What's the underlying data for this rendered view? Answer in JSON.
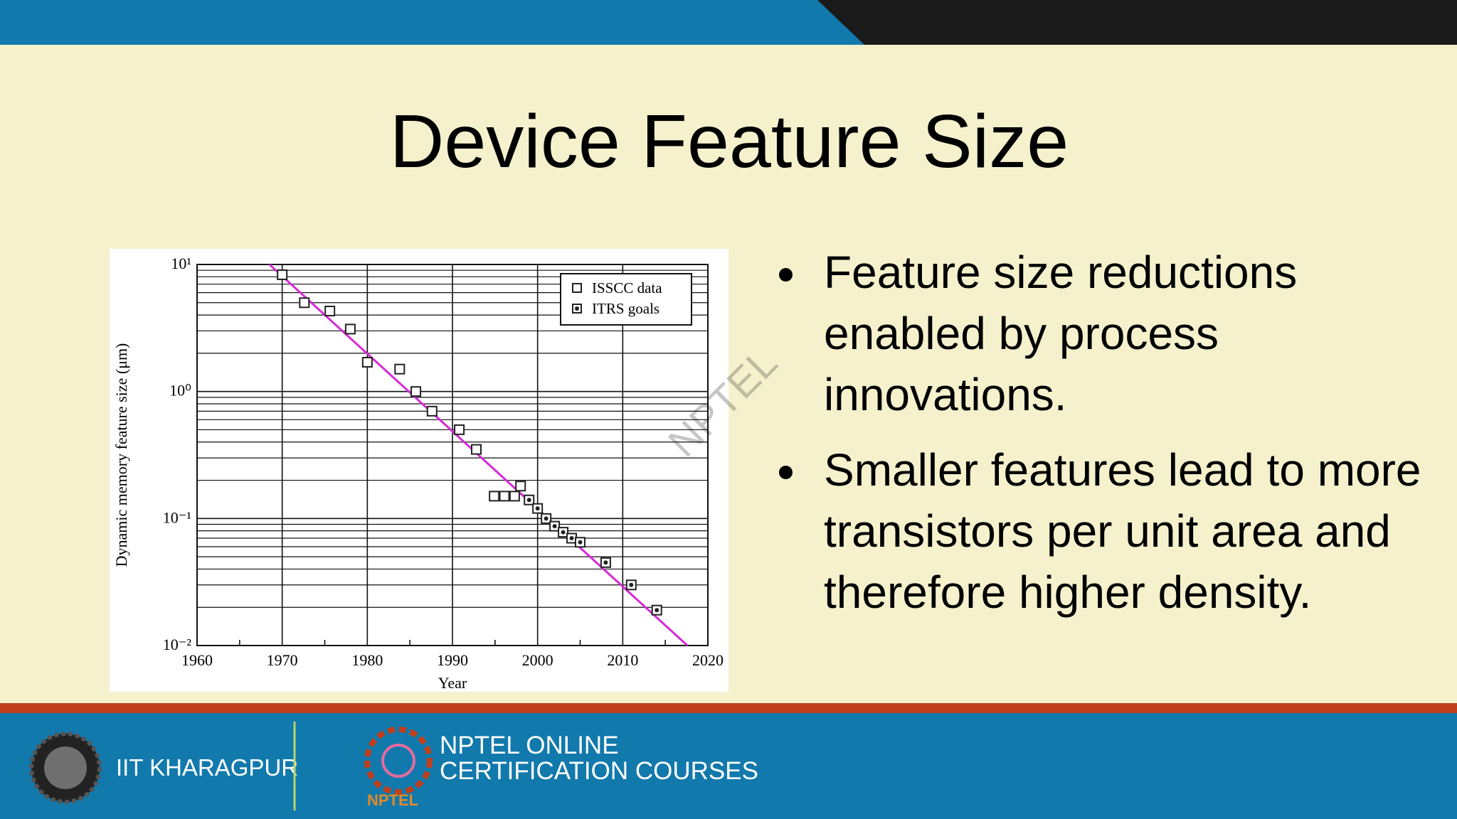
{
  "slide": {
    "title": "Device Feature Size",
    "bullets": [
      "Feature size reductions enabled by process innovations.",
      "Smaller features lead to more transistors per unit area and therefore higher density."
    ],
    "watermark": "NPTEL",
    "footer": {
      "institute": "IIT KHARAGPUR",
      "program_line1": "NPTEL ONLINE",
      "program_line2": "CERTIFICATION COURSES",
      "logo_text": "NPTEL"
    }
  },
  "chart_data": {
    "type": "scatter",
    "x_label": "Year",
    "y_label": "Dynamic memory feature size (μm)",
    "xlim": [
      1960,
      2020
    ],
    "xticks": [
      1960,
      1970,
      1980,
      1990,
      2000,
      2010,
      2020
    ],
    "xticks_minor": [
      1965,
      1975,
      1985,
      1995,
      2005,
      2015
    ],
    "ylim": [
      0.01,
      10
    ],
    "log_y": true,
    "yticks": [
      {
        "value": 10,
        "label": "10¹"
      },
      {
        "value": 1,
        "label": "10⁰"
      },
      {
        "value": 0.1,
        "label": "10⁻¹"
      },
      {
        "value": 0.01,
        "label": "10⁻²"
      }
    ],
    "yticks_minor": [
      0.02,
      0.03,
      0.04,
      0.05,
      0.06,
      0.07,
      0.08,
      0.09,
      0.2,
      0.3,
      0.4,
      0.5,
      0.6,
      0.7,
      0.8,
      0.9,
      2,
      3,
      4,
      5,
      6,
      7,
      8,
      9
    ],
    "grid": true,
    "legend": "upper right",
    "series": [
      {
        "name": "ISSCC data",
        "color": "#222222",
        "marker": "open-square",
        "x": [
          1970,
          1972.6,
          1975.6,
          1978,
          1980,
          1983.8,
          1985.7,
          1987.6,
          1990.8,
          1992.8,
          1994.9,
          1996.1,
          1997.3,
          1998
        ],
        "values": [
          8.3,
          5.0,
          4.3,
          3.1,
          1.7,
          1.5,
          1.0,
          0.7,
          0.5,
          0.35,
          0.15,
          0.15,
          0.15,
          0.18
        ]
      },
      {
        "name": "ITRS goals",
        "color": "#222222",
        "marker": "dot-square",
        "x": [
          1999,
          2000,
          2001,
          2002,
          2003,
          2004,
          2005,
          2008,
          2011,
          2014
        ],
        "values": [
          0.14,
          0.12,
          0.1,
          0.087,
          0.078,
          0.07,
          0.065,
          0.045,
          0.03,
          0.019
        ]
      }
    ],
    "trend_line": {
      "color": "#d62ad6",
      "x": [
        1968.5,
        2017.6
      ],
      "values": [
        10,
        0.01
      ]
    }
  }
}
